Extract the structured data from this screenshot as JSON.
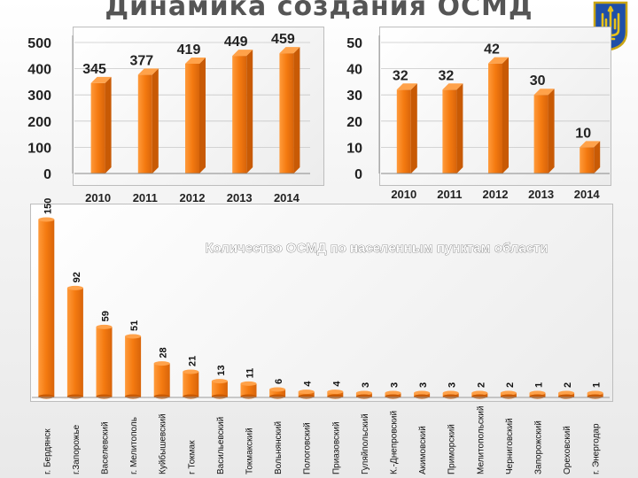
{
  "slide": {
    "title": "Динамика создания ОСМД",
    "bar_color": "#f07a12",
    "bar_side_color": "#c85a05",
    "bar_top_color": "#ffa24a"
  },
  "crest": {
    "icon": "trident-icon",
    "shield_color": "#1f4fa8",
    "emblem_color": "#e8c21a"
  },
  "chart_data": [
    {
      "type": "bar",
      "categories": [
        "2010",
        "2011",
        "2012",
        "2013",
        "2014"
      ],
      "values": [
        345,
        377,
        419,
        449,
        459
      ],
      "ylim": [
        0,
        500
      ],
      "yticks": [
        "0",
        "100",
        "200",
        "300",
        "400",
        "500"
      ],
      "grid": true,
      "legend": "none"
    },
    {
      "type": "bar",
      "categories": [
        "2010",
        "2011",
        "2012",
        "2013",
        "2014"
      ],
      "values": [
        32,
        32,
        42,
        30,
        10
      ],
      "ylim": [
        0,
        50
      ],
      "yticks": [
        "0",
        "10",
        "20",
        "30",
        "40",
        "50"
      ],
      "grid": true,
      "legend": "none"
    },
    {
      "type": "bar",
      "title": "Количество ОСМД по населенным пунктам области",
      "categories": [
        "г. Бердянск",
        "г.Запорожье",
        "Васелевский",
        "г. Мелитополь",
        "Куйбышевский",
        "г Токмак",
        "Васильевский",
        "Токмакский",
        "Вольнянский",
        "Пологовский",
        "Приазовский",
        "Гуляйпольский",
        "К.-Днепровский",
        "Акимовский",
        "Приморский",
        "Мелитопольский",
        "Черниговский",
        "Запорожский",
        "Ореховский",
        "г. Энергодар"
      ],
      "values": [
        150,
        92,
        59,
        51,
        28,
        21,
        13,
        11,
        6,
        4,
        4,
        3,
        3,
        3,
        3,
        2,
        2,
        1,
        2,
        1
      ],
      "ylim": [
        0,
        150
      ],
      "grid": false,
      "legend": "none"
    }
  ]
}
